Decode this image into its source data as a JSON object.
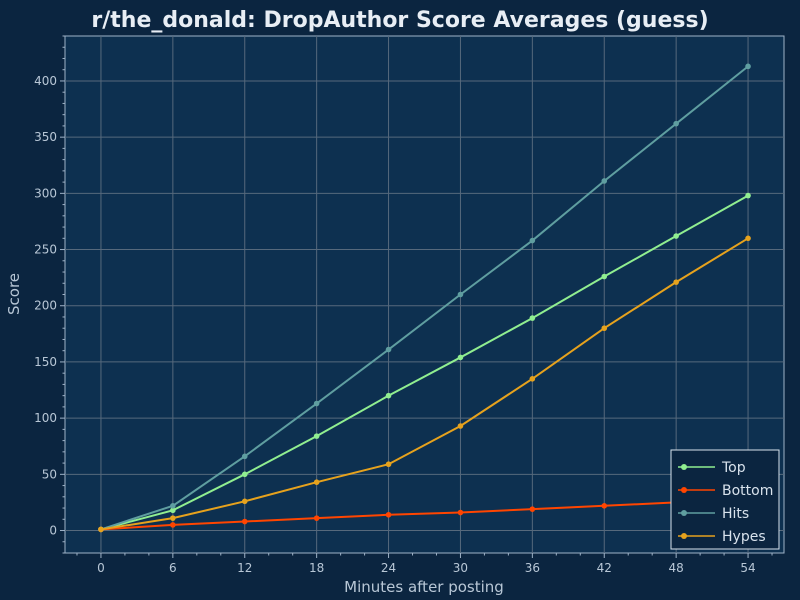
{
  "chart_data": {
    "type": "line",
    "title": "r/the_donald: DropAuthor Score Averages (guess)",
    "xlabel": "Minutes after posting",
    "ylabel": "Score",
    "x": [
      0,
      6,
      12,
      18,
      24,
      30,
      36,
      42,
      48,
      54
    ],
    "xlim": [
      -3,
      57
    ],
    "ylim": [
      -20,
      440
    ],
    "xticks": [
      0,
      6,
      12,
      18,
      24,
      30,
      36,
      42,
      48,
      54
    ],
    "yticks": [
      0,
      50,
      100,
      150,
      200,
      250,
      300,
      350,
      400
    ],
    "grid": true,
    "legend_position": "lower-right",
    "series": [
      {
        "name": "Top",
        "color": "#90ee90",
        "values": [
          1,
          18,
          50,
          84,
          120,
          154,
          189,
          226,
          262,
          298
        ]
      },
      {
        "name": "Bottom",
        "color": "#ff4500",
        "values": [
          1,
          5,
          8,
          11,
          14,
          16,
          19,
          22,
          25,
          27
        ]
      },
      {
        "name": "Hits",
        "color": "#5f9ea0",
        "values": [
          1,
          22,
          66,
          113,
          161,
          210,
          258,
          311,
          362,
          413
        ]
      },
      {
        "name": "Hypes",
        "color": "#e6a21d",
        "values": [
          1,
          11,
          26,
          43,
          59,
          93,
          135,
          180,
          221,
          260
        ]
      }
    ]
  }
}
